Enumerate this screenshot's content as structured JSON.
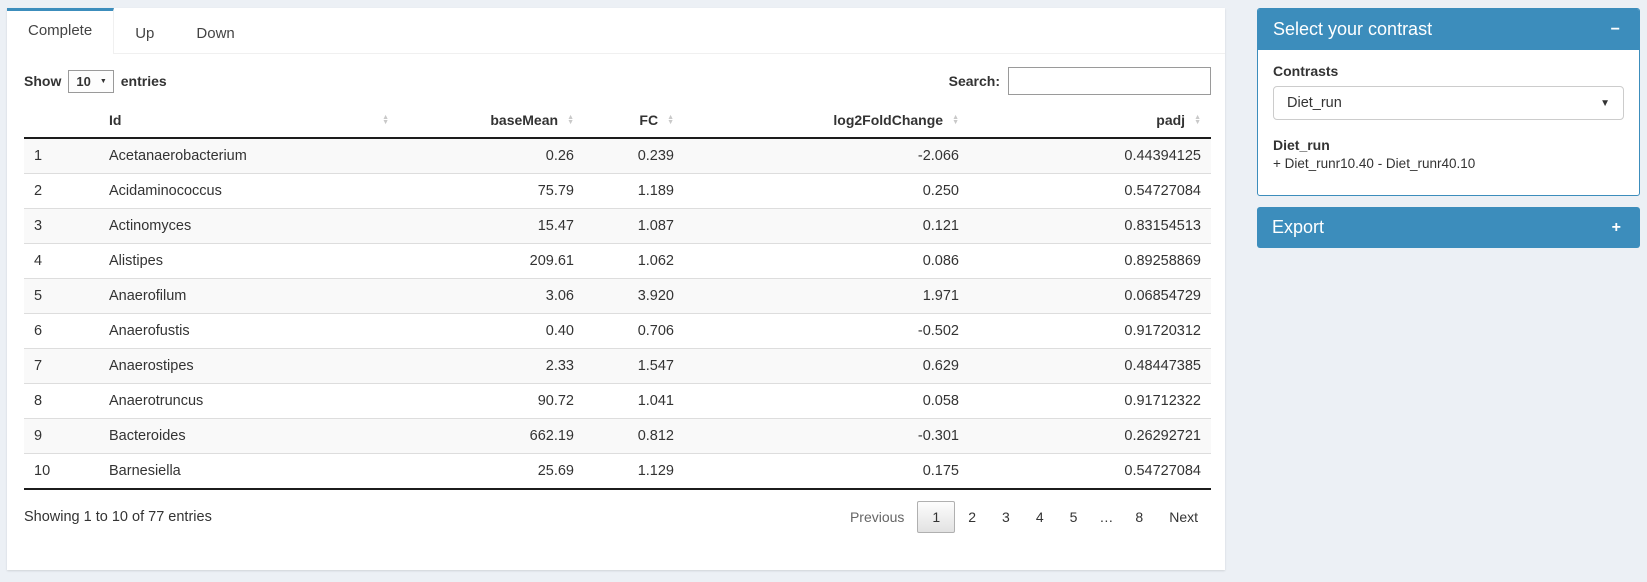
{
  "colors": {
    "accent": "#3c8dbc",
    "page_bg": "#ecf0f5"
  },
  "tabs": [
    {
      "label": "Complete"
    },
    {
      "label": "Up"
    },
    {
      "label": "Down"
    }
  ],
  "length_control": {
    "prefix": "Show",
    "value": "10",
    "suffix": "entries"
  },
  "search": {
    "label": "Search:",
    "value": ""
  },
  "table": {
    "columns": [
      "Id",
      "baseMean",
      "FC",
      "log2FoldChange",
      "padj"
    ],
    "rows": [
      {
        "n": "1",
        "id": "Acetanaerobacterium",
        "baseMean": "0.26",
        "fc": "0.239",
        "log2fc": "-2.066",
        "padj": "0.44394125"
      },
      {
        "n": "2",
        "id": "Acidaminococcus",
        "baseMean": "75.79",
        "fc": "1.189",
        "log2fc": "0.250",
        "padj": "0.54727084"
      },
      {
        "n": "3",
        "id": "Actinomyces",
        "baseMean": "15.47",
        "fc": "1.087",
        "log2fc": "0.121",
        "padj": "0.83154513"
      },
      {
        "n": "4",
        "id": "Alistipes",
        "baseMean": "209.61",
        "fc": "1.062",
        "log2fc": "0.086",
        "padj": "0.89258869"
      },
      {
        "n": "5",
        "id": "Anaerofilum",
        "baseMean": "3.06",
        "fc": "3.920",
        "log2fc": "1.971",
        "padj": "0.06854729"
      },
      {
        "n": "6",
        "id": "Anaerofustis",
        "baseMean": "0.40",
        "fc": "0.706",
        "log2fc": "-0.502",
        "padj": "0.91720312"
      },
      {
        "n": "7",
        "id": "Anaerostipes",
        "baseMean": "2.33",
        "fc": "1.547",
        "log2fc": "0.629",
        "padj": "0.48447385"
      },
      {
        "n": "8",
        "id": "Anaerotruncus",
        "baseMean": "90.72",
        "fc": "1.041",
        "log2fc": "0.058",
        "padj": "0.91712322"
      },
      {
        "n": "9",
        "id": "Bacteroides",
        "baseMean": "662.19",
        "fc": "0.812",
        "log2fc": "-0.301",
        "padj": "0.26292721"
      },
      {
        "n": "10",
        "id": "Barnesiella",
        "baseMean": "25.69",
        "fc": "1.129",
        "log2fc": "0.175",
        "padj": "0.54727084"
      }
    ]
  },
  "footer": {
    "info": "Showing 1 to 10 of 77 entries",
    "previous": "Previous",
    "pages": [
      "1",
      "2",
      "3",
      "4",
      "5",
      "…",
      "8"
    ],
    "active_page": "1",
    "next": "Next"
  },
  "contrast_box": {
    "title": "Select your contrast",
    "collapse_icon": "−",
    "contrasts_label": "Contrasts",
    "selected_contrast": "Diet_run",
    "detail_title": "Diet_run",
    "detail_formula": "+ Diet_runr10.40 - Diet_runr40.10"
  },
  "export_box": {
    "title": "Export",
    "expand_icon": "+"
  }
}
